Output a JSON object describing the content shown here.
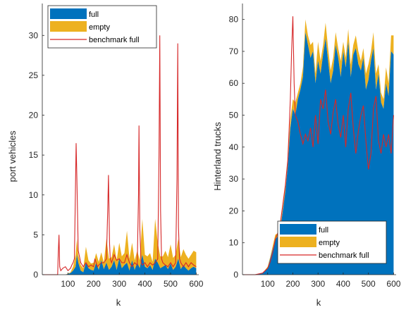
{
  "colors": {
    "full": "#0072BD",
    "empty": "#EDB120",
    "benchmark": "#D62728"
  },
  "chart_data": [
    {
      "type": "area",
      "xlabel": "k",
      "ylabel": "port vehicles",
      "xlim": [
        0,
        610
      ],
      "ylim": [
        0,
        34
      ],
      "xticks": [
        100,
        200,
        300,
        400,
        500,
        600
      ],
      "yticks": [
        0,
        5,
        10,
        15,
        20,
        25,
        30
      ],
      "legend": {
        "placement": "top-left",
        "entries": [
          "full",
          "empty",
          "benchmark full"
        ]
      },
      "series": [
        {
          "name": "full",
          "x": [
            0,
            60,
            90,
            110,
            120,
            130,
            135,
            140,
            150,
            160,
            170,
            180,
            190,
            200,
            210,
            220,
            230,
            240,
            250,
            260,
            270,
            280,
            290,
            300,
            310,
            320,
            330,
            340,
            350,
            360,
            370,
            380,
            390,
            400,
            410,
            420,
            430,
            440,
            450,
            460,
            470,
            480,
            490,
            500,
            510,
            520,
            530,
            540,
            550,
            560,
            570,
            580,
            590,
            600
          ],
          "values": [
            0,
            0,
            0,
            0.2,
            0.5,
            1.0,
            2.5,
            1.5,
            0.5,
            0.3,
            1.5,
            0.8,
            0.6,
            0.5,
            1.5,
            0.6,
            1.8,
            0.7,
            1.5,
            0.6,
            1.0,
            1.8,
            0.6,
            2.0,
            0.8,
            1.2,
            1.5,
            0.5,
            1.8,
            0.6,
            1.5,
            0.8,
            2.5,
            1.0,
            0.8,
            1.2,
            0.6,
            2.0,
            1.5,
            0.8,
            1.0,
            1.2,
            0.7,
            1.4,
            0.6,
            1.0,
            2.0,
            0.7,
            1.2,
            0.8,
            0.5,
            0.8,
            1.0,
            0.8
          ]
        },
        {
          "name": "empty",
          "x": [
            0,
            60,
            90,
            110,
            120,
            130,
            135,
            140,
            150,
            160,
            170,
            180,
            190,
            200,
            210,
            220,
            230,
            240,
            250,
            260,
            270,
            280,
            290,
            300,
            310,
            320,
            330,
            340,
            350,
            360,
            370,
            380,
            390,
            400,
            410,
            420,
            430,
            440,
            450,
            460,
            470,
            480,
            490,
            500,
            510,
            520,
            530,
            540,
            550,
            560,
            570,
            580,
            590,
            600
          ],
          "values": [
            0,
            0,
            0,
            0.1,
            0.5,
            1.5,
            2.0,
            1.0,
            0.7,
            0.5,
            2.0,
            1.0,
            0.8,
            1.0,
            1.2,
            1.0,
            1.0,
            0.8,
            3.0,
            1.4,
            1.2,
            2.0,
            1.2,
            2.0,
            1.5,
            1.5,
            4.0,
            1.5,
            2.2,
            1.2,
            1.5,
            1.0,
            4.5,
            1.5,
            1.5,
            1.5,
            1.0,
            5.0,
            2.5,
            1.5,
            1.3,
            1.8,
            1.5,
            2.4,
            1.5,
            1.5,
            2.5,
            1.5,
            2.0,
            1.7,
            1.5,
            1.7,
            2.0,
            2.0
          ]
        },
        {
          "name": "benchmark full",
          "x": [
            0,
            60,
            62,
            65,
            68,
            72,
            80,
            90,
            100,
            110,
            115,
            120,
            125,
            128,
            132,
            135,
            140,
            150,
            160,
            170,
            180,
            190,
            200,
            205,
            210,
            215,
            220,
            230,
            240,
            250,
            255,
            258,
            262,
            265,
            270,
            280,
            290,
            300,
            310,
            320,
            330,
            340,
            350,
            360,
            370,
            375,
            377,
            380,
            385,
            390,
            400,
            410,
            420,
            430,
            440,
            450,
            455,
            458,
            461,
            465,
            470,
            480,
            490,
            500,
            510,
            520,
            525,
            528,
            531,
            535,
            540,
            550,
            560,
            570,
            580,
            590,
            600
          ],
          "values": [
            0,
            0,
            2.5,
            5.0,
            1.0,
            0.5,
            0.8,
            1.0,
            0.5,
            0.8,
            1.2,
            1.5,
            2.0,
            8.0,
            16.5,
            12.0,
            3.0,
            1.5,
            1.0,
            1.5,
            1.0,
            1.2,
            1.0,
            2.0,
            1.5,
            1.0,
            1.2,
            1.5,
            1.5,
            2.0,
            8.0,
            12.5,
            4.0,
            2.0,
            1.5,
            2.5,
            1.8,
            2.0,
            1.5,
            1.5,
            2.5,
            1.5,
            1.0,
            1.5,
            1.2,
            10.0,
            18.7,
            6.0,
            1.5,
            1.2,
            1.5,
            1.0,
            1.5,
            1.2,
            1.5,
            2.0,
            15.0,
            30.0,
            8.0,
            2.0,
            1.5,
            1.2,
            1.0,
            1.5,
            1.0,
            1.5,
            12.0,
            29.0,
            6.0,
            2.0,
            1.5,
            1.0,
            1.5,
            1.0,
            1.5,
            1.2,
            1.0
          ]
        }
      ]
    },
    {
      "type": "area",
      "xlabel": "k",
      "ylabel": "Hinterland trucks",
      "xlim": [
        0,
        610
      ],
      "ylim": [
        0,
        85
      ],
      "xticks": [
        100,
        200,
        300,
        400,
        500,
        600
      ],
      "yticks": [
        0,
        10,
        20,
        30,
        40,
        50,
        60,
        70,
        80
      ],
      "legend": {
        "placement": "bottom-right",
        "entries": [
          "full",
          "empty",
          "benchmark full"
        ]
      },
      "series": [
        {
          "name": "full",
          "x": [
            0,
            50,
            80,
            100,
            110,
            120,
            130,
            140,
            150,
            160,
            170,
            180,
            190,
            200,
            210,
            220,
            230,
            240,
            250,
            260,
            270,
            280,
            290,
            300,
            310,
            320,
            330,
            340,
            350,
            360,
            370,
            380,
            390,
            400,
            410,
            420,
            430,
            440,
            450,
            460,
            470,
            480,
            490,
            500,
            510,
            520,
            530,
            540,
            550,
            560,
            570,
            580,
            590,
            600
          ],
          "values": [
            0,
            0,
            0.5,
            2,
            5,
            8,
            11,
            12,
            14,
            20,
            26,
            34,
            46,
            52,
            50,
            55,
            58,
            62,
            76,
            72,
            68,
            70,
            60,
            67,
            63,
            69,
            74,
            67,
            60,
            64,
            72,
            68,
            62,
            70,
            65,
            73,
            62,
            69,
            71,
            66,
            64,
            68,
            58,
            61,
            67,
            71,
            58,
            63,
            54,
            52,
            60,
            56,
            70,
            69
          ]
        },
        {
          "name": "empty",
          "x": [
            0,
            50,
            80,
            100,
            110,
            120,
            130,
            140,
            150,
            160,
            170,
            180,
            190,
            200,
            210,
            220,
            230,
            240,
            250,
            260,
            270,
            280,
            290,
            300,
            310,
            320,
            330,
            340,
            350,
            360,
            370,
            380,
            390,
            400,
            410,
            420,
            430,
            440,
            450,
            460,
            470,
            480,
            490,
            500,
            510,
            520,
            530,
            540,
            550,
            560,
            570,
            580,
            590,
            600
          ],
          "values": [
            0,
            0,
            0,
            0.5,
            0.5,
            1,
            1.5,
            1,
            1,
            1,
            1.5,
            2,
            3,
            3,
            4,
            2,
            2,
            3,
            4,
            3,
            4,
            3,
            3,
            6,
            4,
            3,
            5,
            4,
            4,
            4,
            4,
            3,
            5,
            3,
            3,
            4,
            4,
            3,
            4,
            4,
            3,
            3,
            5,
            5,
            3,
            5,
            5,
            3,
            3,
            3,
            5,
            4,
            5,
            6
          ]
        },
        {
          "name": "benchmark full",
          "x": [
            0,
            50,
            80,
            100,
            110,
            120,
            130,
            140,
            150,
            160,
            170,
            180,
            185,
            190,
            195,
            200,
            205,
            210,
            220,
            230,
            240,
            250,
            260,
            270,
            280,
            290,
            300,
            310,
            320,
            330,
            340,
            350,
            360,
            370,
            380,
            390,
            400,
            410,
            420,
            430,
            440,
            450,
            460,
            470,
            480,
            490,
            500,
            510,
            520,
            530,
            540,
            550,
            560,
            570,
            580,
            590,
            600
          ],
          "values": [
            0,
            0,
            0.5,
            2,
            4,
            7,
            11,
            13,
            16,
            22,
            28,
            36,
            45,
            55,
            70,
            81,
            60,
            50,
            48,
            44,
            41,
            44,
            42,
            46,
            40,
            50,
            41,
            55,
            52,
            58,
            48,
            44,
            51,
            55,
            47,
            43,
            50,
            40,
            52,
            57,
            46,
            38,
            45,
            50,
            53,
            42,
            33,
            38,
            52,
            56,
            42,
            38,
            44,
            40,
            44,
            38,
            50
          ]
        }
      ]
    }
  ]
}
